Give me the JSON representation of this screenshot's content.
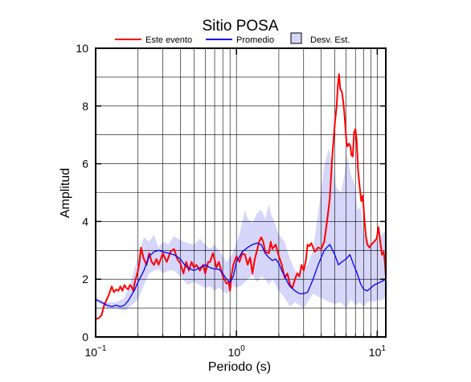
{
  "chart_data": {
    "type": "line",
    "title": "Sitio POSA",
    "xlabel": "Periodo (s)",
    "ylabel": "Amplitud",
    "x_scale": "log",
    "xlim": [
      0.1,
      11.5
    ],
    "ylim": [
      0,
      10
    ],
    "x_ticks": [
      {
        "value": 0.1,
        "base": "10",
        "exp": "−1"
      },
      {
        "value": 1,
        "base": "10",
        "exp": "0"
      },
      {
        "value": 10,
        "base": "10",
        "exp": "1"
      }
    ],
    "y_ticks": [
      0,
      2,
      4,
      6,
      8,
      10
    ],
    "grid": true,
    "legend_position": "top",
    "legend": [
      {
        "label": "Este evento",
        "kind": "line",
        "color": "#ff0000"
      },
      {
        "label": "Promedio",
        "kind": "line",
        "color": "#0000ff"
      },
      {
        "label": "Desv. Est.",
        "kind": "box",
        "color": "#d6d6fa"
      }
    ],
    "series": [
      {
        "name": "Este evento",
        "color": "#ff0000",
        "points": [
          [
            0.1,
            0.62
          ],
          [
            0.105,
            0.65
          ],
          [
            0.11,
            0.75
          ],
          [
            0.115,
            1.1
          ],
          [
            0.12,
            1.3
          ],
          [
            0.125,
            1.5
          ],
          [
            0.13,
            1.75
          ],
          [
            0.135,
            1.55
          ],
          [
            0.14,
            1.65
          ],
          [
            0.145,
            1.6
          ],
          [
            0.15,
            1.75
          ],
          [
            0.155,
            1.6
          ],
          [
            0.16,
            1.8
          ],
          [
            0.165,
            1.7
          ],
          [
            0.17,
            1.65
          ],
          [
            0.175,
            1.8
          ],
          [
            0.18,
            1.75
          ],
          [
            0.185,
            1.6
          ],
          [
            0.19,
            1.9
          ],
          [
            0.2,
            2.3
          ],
          [
            0.205,
            2.6
          ],
          [
            0.21,
            3.1
          ],
          [
            0.215,
            2.9
          ],
          [
            0.22,
            2.7
          ],
          [
            0.23,
            2.5
          ],
          [
            0.24,
            2.9
          ],
          [
            0.25,
            2.6
          ],
          [
            0.26,
            2.5
          ],
          [
            0.27,
            2.7
          ],
          [
            0.28,
            2.5
          ],
          [
            0.3,
            2.9
          ],
          [
            0.32,
            2.6
          ],
          [
            0.34,
            2.95
          ],
          [
            0.36,
            3.05
          ],
          [
            0.38,
            2.7
          ],
          [
            0.4,
            2.55
          ],
          [
            0.42,
            2.2
          ],
          [
            0.44,
            2.6
          ],
          [
            0.46,
            2.3
          ],
          [
            0.48,
            2.6
          ],
          [
            0.5,
            2.4
          ],
          [
            0.52,
            2.5
          ],
          [
            0.55,
            2.3
          ],
          [
            0.58,
            2.5
          ],
          [
            0.6,
            2.2
          ],
          [
            0.63,
            2.6
          ],
          [
            0.65,
            2.6
          ],
          [
            0.68,
            2.9
          ],
          [
            0.7,
            2.7
          ],
          [
            0.72,
            2.4
          ],
          [
            0.75,
            2.6
          ],
          [
            0.78,
            2.3
          ],
          [
            0.8,
            2.1
          ],
          [
            0.85,
            1.85
          ],
          [
            0.88,
            1.9
          ],
          [
            0.9,
            1.6
          ],
          [
            0.92,
            2.1
          ],
          [
            0.95,
            2.5
          ],
          [
            1.0,
            2.8
          ],
          [
            1.05,
            2.6
          ],
          [
            1.1,
            2.9
          ],
          [
            1.15,
            2.85
          ],
          [
            1.2,
            2.5
          ],
          [
            1.25,
            2.75
          ],
          [
            1.3,
            2.2
          ],
          [
            1.35,
            2.7
          ],
          [
            1.4,
            3.0
          ],
          [
            1.45,
            3.3
          ],
          [
            1.5,
            3.45
          ],
          [
            1.55,
            3.3
          ],
          [
            1.6,
            2.95
          ],
          [
            1.7,
            2.9
          ],
          [
            1.75,
            3.3
          ],
          [
            1.8,
            3.05
          ],
          [
            1.9,
            3.2
          ],
          [
            2.0,
            2.8
          ],
          [
            2.1,
            2.5
          ],
          [
            2.2,
            2.05
          ],
          [
            2.3,
            2.2
          ],
          [
            2.4,
            1.8
          ],
          [
            2.5,
            1.7
          ],
          [
            2.6,
            2.0
          ],
          [
            2.7,
            2.2
          ],
          [
            2.8,
            2.1
          ],
          [
            2.9,
            2.5
          ],
          [
            3.0,
            2.3
          ],
          [
            3.1,
            2.6
          ],
          [
            3.2,
            3.2
          ],
          [
            3.3,
            3.15
          ],
          [
            3.4,
            3.25
          ],
          [
            3.6,
            2.95
          ],
          [
            3.8,
            3.1
          ],
          [
            4.0,
            3.05
          ],
          [
            4.2,
            3.3
          ],
          [
            4.4,
            4.0
          ],
          [
            4.6,
            4.8
          ],
          [
            4.8,
            6.3
          ],
          [
            5.0,
            7.4
          ],
          [
            5.15,
            8.0
          ],
          [
            5.25,
            8.7
          ],
          [
            5.35,
            9.1
          ],
          [
            5.45,
            8.6
          ],
          [
            5.6,
            8.5
          ],
          [
            5.75,
            8.1
          ],
          [
            5.85,
            7.7
          ],
          [
            5.95,
            7.2
          ],
          [
            6.05,
            6.75
          ],
          [
            6.15,
            6.6
          ],
          [
            6.3,
            6.7
          ],
          [
            6.45,
            6.6
          ],
          [
            6.55,
            6.3
          ],
          [
            6.7,
            6.25
          ],
          [
            6.85,
            7.1
          ],
          [
            7.0,
            7.2
          ],
          [
            7.15,
            6.8
          ],
          [
            7.3,
            5.8
          ],
          [
            7.5,
            5.2
          ],
          [
            7.7,
            4.7
          ],
          [
            7.9,
            4.9
          ],
          [
            8.1,
            4.1
          ],
          [
            8.3,
            3.5
          ],
          [
            8.5,
            3.2
          ],
          [
            8.8,
            3.1
          ],
          [
            9.1,
            3.2
          ],
          [
            9.5,
            3.3
          ],
          [
            9.9,
            3.4
          ],
          [
            10.2,
            3.8
          ],
          [
            10.5,
            3.3
          ],
          [
            10.8,
            2.85
          ],
          [
            11.1,
            2.95
          ],
          [
            11.3,
            2.65
          ],
          [
            11.5,
            2.1
          ]
        ]
      },
      {
        "name": "Promedio",
        "color": "#0000ff",
        "points": [
          [
            0.1,
            1.3
          ],
          [
            0.11,
            1.2
          ],
          [
            0.12,
            1.1
          ],
          [
            0.13,
            1.05
          ],
          [
            0.14,
            1.1
          ],
          [
            0.15,
            1.05
          ],
          [
            0.16,
            1.1
          ],
          [
            0.17,
            1.25
          ],
          [
            0.18,
            1.45
          ],
          [
            0.19,
            1.65
          ],
          [
            0.2,
            1.9
          ],
          [
            0.22,
            2.3
          ],
          [
            0.24,
            2.8
          ],
          [
            0.26,
            2.95
          ],
          [
            0.28,
            3.0
          ],
          [
            0.3,
            2.95
          ],
          [
            0.33,
            2.9
          ],
          [
            0.36,
            2.85
          ],
          [
            0.4,
            2.7
          ],
          [
            0.42,
            2.55
          ],
          [
            0.45,
            2.4
          ],
          [
            0.5,
            2.3
          ],
          [
            0.55,
            2.4
          ],
          [
            0.6,
            2.5
          ],
          [
            0.65,
            2.4
          ],
          [
            0.7,
            2.35
          ],
          [
            0.75,
            2.35
          ],
          [
            0.8,
            2.2
          ],
          [
            0.85,
            2.0
          ],
          [
            0.9,
            1.9
          ],
          [
            0.95,
            2.1
          ],
          [
            1.0,
            2.6
          ],
          [
            1.1,
            2.95
          ],
          [
            1.2,
            3.1
          ],
          [
            1.3,
            3.2
          ],
          [
            1.4,
            3.25
          ],
          [
            1.5,
            3.2
          ],
          [
            1.6,
            2.9
          ],
          [
            1.7,
            2.75
          ],
          [
            1.8,
            2.65
          ],
          [
            1.9,
            2.7
          ],
          [
            2.0,
            2.55
          ],
          [
            2.1,
            2.3
          ],
          [
            2.2,
            2.1
          ],
          [
            2.3,
            1.9
          ],
          [
            2.4,
            1.75
          ],
          [
            2.6,
            1.6
          ],
          [
            2.8,
            1.5
          ],
          [
            3.0,
            1.5
          ],
          [
            3.2,
            1.55
          ],
          [
            3.5,
            2.0
          ],
          [
            3.8,
            2.5
          ],
          [
            4.2,
            3.0
          ],
          [
            4.6,
            3.2
          ],
          [
            5.0,
            2.85
          ],
          [
            5.3,
            2.5
          ],
          [
            5.6,
            2.6
          ],
          [
            6.0,
            2.7
          ],
          [
            6.4,
            2.85
          ],
          [
            6.8,
            2.5
          ],
          [
            7.2,
            2.2
          ],
          [
            7.6,
            1.85
          ],
          [
            8.0,
            1.65
          ],
          [
            8.5,
            1.6
          ],
          [
            9.0,
            1.7
          ],
          [
            9.5,
            1.8
          ],
          [
            10.0,
            1.85
          ],
          [
            10.5,
            1.9
          ],
          [
            11.0,
            1.95
          ],
          [
            11.5,
            2.0
          ]
        ]
      }
    ],
    "std_band": {
      "name": "Desv. Est.",
      "color": "#d6d6fa",
      "upper": [
        [
          0.1,
          1.35
        ],
        [
          0.12,
          1.2
        ],
        [
          0.14,
          1.2
        ],
        [
          0.16,
          1.35
        ],
        [
          0.18,
          2.0
        ],
        [
          0.2,
          2.8
        ],
        [
          0.22,
          3.45
        ],
        [
          0.24,
          3.3
        ],
        [
          0.26,
          3.55
        ],
        [
          0.28,
          3.1
        ],
        [
          0.3,
          3.3
        ],
        [
          0.33,
          3.2
        ],
        [
          0.36,
          3.5
        ],
        [
          0.4,
          3.35
        ],
        [
          0.45,
          3.25
        ],
        [
          0.5,
          3.2
        ],
        [
          0.55,
          3.4
        ],
        [
          0.6,
          3.2
        ],
        [
          0.65,
          3.05
        ],
        [
          0.7,
          3.2
        ],
        [
          0.75,
          3.0
        ],
        [
          0.8,
          2.8
        ],
        [
          0.85,
          2.6
        ],
        [
          0.9,
          2.75
        ],
        [
          0.95,
          2.95
        ],
        [
          1.0,
          3.25
        ],
        [
          1.05,
          3.55
        ],
        [
          1.1,
          4.0
        ],
        [
          1.15,
          4.4
        ],
        [
          1.2,
          4.1
        ],
        [
          1.3,
          3.95
        ],
        [
          1.4,
          4.3
        ],
        [
          1.5,
          4.4
        ],
        [
          1.6,
          4.1
        ],
        [
          1.7,
          4.6
        ],
        [
          1.75,
          4.3
        ],
        [
          1.85,
          4.0
        ],
        [
          2.0,
          3.55
        ],
        [
          2.2,
          3.3
        ],
        [
          2.4,
          2.7
        ],
        [
          2.6,
          2.3
        ],
        [
          2.8,
          2.2
        ],
        [
          3.0,
          2.3
        ],
        [
          3.2,
          2.5
        ],
        [
          3.5,
          3.0
        ],
        [
          3.8,
          4.3
        ],
        [
          4.2,
          5.9
        ],
        [
          4.5,
          6.5
        ],
        [
          4.8,
          6.0
        ],
        [
          5.1,
          5.2
        ],
        [
          5.5,
          5.0
        ],
        [
          5.8,
          5.5
        ],
        [
          6.1,
          6.3
        ],
        [
          6.5,
          5.6
        ],
        [
          6.9,
          5.3
        ],
        [
          7.2,
          4.4
        ],
        [
          7.6,
          4.5
        ],
        [
          8.0,
          3.6
        ],
        [
          8.5,
          3.4
        ],
        [
          9.0,
          3.2
        ],
        [
          9.5,
          3.4
        ],
        [
          10.0,
          3.3
        ],
        [
          10.5,
          3.5
        ],
        [
          11.0,
          3.6
        ],
        [
          11.5,
          3.7
        ]
      ],
      "lower": [
        [
          0.1,
          1.25
        ],
        [
          0.12,
          1.0
        ],
        [
          0.14,
          1.0
        ],
        [
          0.16,
          0.9
        ],
        [
          0.18,
          1.1
        ],
        [
          0.2,
          1.3
        ],
        [
          0.22,
          1.8
        ],
        [
          0.24,
          2.2
        ],
        [
          0.26,
          2.3
        ],
        [
          0.28,
          2.35
        ],
        [
          0.3,
          2.2
        ],
        [
          0.33,
          2.3
        ],
        [
          0.36,
          2.3
        ],
        [
          0.4,
          2.1
        ],
        [
          0.45,
          1.8
        ],
        [
          0.5,
          1.9
        ],
        [
          0.55,
          1.8
        ],
        [
          0.6,
          1.7
        ],
        [
          0.65,
          1.75
        ],
        [
          0.7,
          1.6
        ],
        [
          0.75,
          1.7
        ],
        [
          0.8,
          1.6
        ],
        [
          0.85,
          1.5
        ],
        [
          0.9,
          1.6
        ],
        [
          0.95,
          1.8
        ],
        [
          1.0,
          1.7
        ],
        [
          1.1,
          1.8
        ],
        [
          1.2,
          2.0
        ],
        [
          1.3,
          2.15
        ],
        [
          1.4,
          1.9
        ],
        [
          1.5,
          2.1
        ],
        [
          1.6,
          2.0
        ],
        [
          1.7,
          1.8
        ],
        [
          1.8,
          2.0
        ],
        [
          2.0,
          1.6
        ],
        [
          2.2,
          1.35
        ],
        [
          2.4,
          1.05
        ],
        [
          2.6,
          1.2
        ],
        [
          2.8,
          1.1
        ],
        [
          3.0,
          1.0
        ],
        [
          3.2,
          1.2
        ],
        [
          3.5,
          1.5
        ],
        [
          3.8,
          1.4
        ],
        [
          4.2,
          1.3
        ],
        [
          4.6,
          1.2
        ],
        [
          5.0,
          1.15
        ],
        [
          5.5,
          1.2
        ],
        [
          6.0,
          1.0
        ],
        [
          6.5,
          1.3
        ],
        [
          7.0,
          1.1
        ],
        [
          7.5,
          1.2
        ],
        [
          8.0,
          1.05
        ],
        [
          8.5,
          1.2
        ],
        [
          9.0,
          1.25
        ],
        [
          9.5,
          1.2
        ],
        [
          10.0,
          1.3
        ],
        [
          10.5,
          1.25
        ],
        [
          11.0,
          1.3
        ],
        [
          11.5,
          1.4
        ]
      ]
    }
  }
}
